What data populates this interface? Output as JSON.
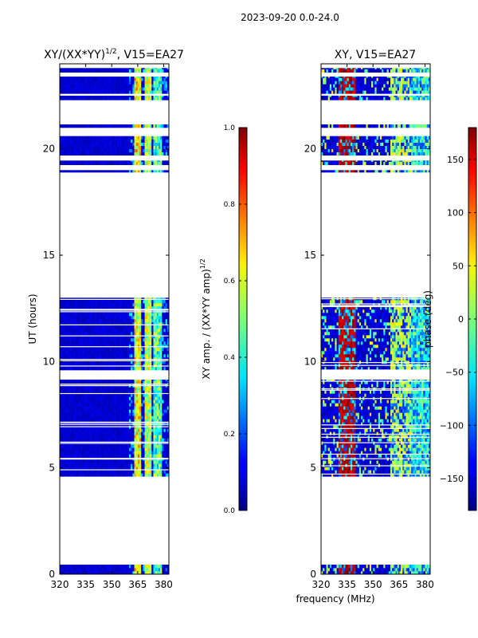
{
  "suptitle": "2023-09-20 0.0-24.0",
  "shared_xlabel": "frequency (MHz)",
  "chart_data": [
    {
      "type": "heatmap",
      "title": "XY/(XX*YY)",
      "title_exp": "1/2",
      "title_suffix": ", V15=EA27",
      "xlabel": "",
      "ylabel": "UT (hours)",
      "xlim": [
        320,
        383
      ],
      "ylim": [
        0,
        24
      ],
      "xticks": [
        320,
        335,
        350,
        365,
        380
      ],
      "yticks": [
        0,
        5,
        10,
        15,
        20
      ],
      "colormap": "jet",
      "colorbar": {
        "label": "XY amp. / (XX*YY amp)",
        "label_exp": "1/2",
        "vmin": 0.0,
        "vmax": 1.0,
        "ticks": [
          "0.0",
          "0.2",
          "0.4",
          "0.6",
          "0.8",
          "1.0"
        ]
      },
      "data_rows_hours": [
        [
          0.0,
          0.45
        ],
        [
          4.6,
          9.15
        ],
        [
          9.6,
          13.0
        ],
        [
          18.9,
          19.0
        ],
        [
          19.25,
          19.45
        ],
        [
          19.7,
          20.6
        ],
        [
          21.0,
          21.15
        ],
        [
          22.3,
          22.5
        ],
        [
          22.6,
          23.4
        ],
        [
          23.6,
          23.8
        ]
      ],
      "typical_values": {
        "background": 0.08,
        "band_363_367": 0.6,
        "band_370_372": 0.55,
        "band_375_378": 0.45
      }
    },
    {
      "type": "heatmap",
      "title": "XY, V15=EA27",
      "xlabel": "",
      "ylabel": "",
      "xlim": [
        320,
        383
      ],
      "ylim": [
        0,
        24
      ],
      "xticks": [
        320,
        335,
        350,
        365,
        380
      ],
      "yticks": [
        0,
        5,
        10,
        15,
        20
      ],
      "colormap": "jet",
      "colorbar": {
        "label": "phase (deg)",
        "vmin": -180,
        "vmax": 180,
        "ticks": [
          "−150",
          "−100",
          "−50",
          "0",
          "50",
          "100",
          "150"
        ]
      },
      "data_rows_hours": [
        [
          0.0,
          0.45
        ],
        [
          4.6,
          9.15
        ],
        [
          9.6,
          13.0
        ],
        [
          18.9,
          19.0
        ],
        [
          19.25,
          19.45
        ],
        [
          19.7,
          20.6
        ],
        [
          21.0,
          21.15
        ],
        [
          22.3,
          22.5
        ],
        [
          22.6,
          23.4
        ],
        [
          23.6,
          23.8
        ]
      ],
      "typical_values": {
        "background_deg": -150,
        "band_330_340_deg": 160,
        "band_360_372_deg": 20,
        "band_372_383_deg": -50
      }
    }
  ]
}
